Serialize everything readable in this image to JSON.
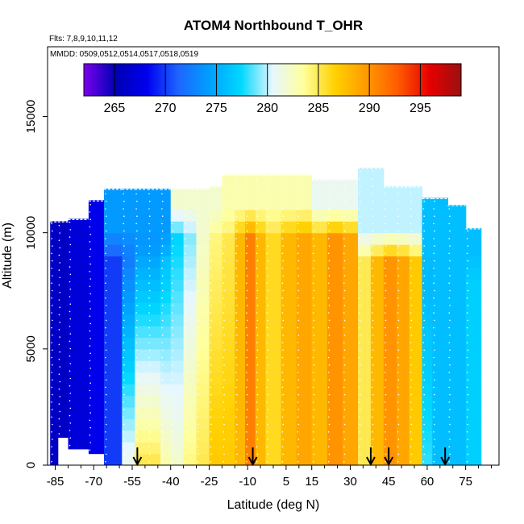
{
  "chart_data": {
    "type": "heatmap",
    "title": "ATOM4 Northbound T_OHR",
    "subtitle_flights": "Flts: 7,8,9,10,11,12",
    "subtitle_dates": "MMDD: 0509,0512,0514,0517,0518,0519",
    "xlabel": "Latitude (deg N)",
    "ylabel": "Altitude (m)",
    "xlim": [
      -88,
      88
    ],
    "ylim": [
      0,
      18000
    ],
    "x_ticks": [
      -85,
      -70,
      -55,
      -40,
      -25,
      -10,
      5,
      15,
      30,
      45,
      60,
      75
    ],
    "x_minor_ticks": [
      -80,
      -75,
      -65,
      -60,
      -50,
      -45,
      -35,
      -30,
      -20,
      -15,
      -5,
      0,
      10,
      20,
      25,
      35,
      40,
      50,
      55,
      65,
      70,
      80,
      85
    ],
    "y_ticks": [
      0,
      5000,
      10000,
      15000
    ],
    "colorbar": {
      "min": 262,
      "max": 299,
      "ticks": [
        265,
        270,
        275,
        280,
        285,
        290,
        295
      ],
      "palette": [
        "#7a00ee",
        "#0000b4",
        "#0000ee",
        "#1e64ff",
        "#00a0ff",
        "#00d8ff",
        "#e6f7ff",
        "#ffff9a",
        "#ffd000",
        "#ff9900",
        "#ff5a00",
        "#e60000",
        "#9a1010"
      ]
    },
    "arrow_latitudes": [
      -53,
      -8,
      38,
      45,
      67
    ],
    "profile_columns": [
      {
        "lat0": -87,
        "lat1": -84,
        "top": 10500,
        "bottom": 0,
        "t_surface": 266,
        "lapse": 0.0
      },
      {
        "lat0": -84,
        "lat1": -80,
        "top": 10500,
        "bottom": 1200,
        "t_surface": 266,
        "lapse": 0.0
      },
      {
        "lat0": -80,
        "lat1": -72,
        "top": 10600,
        "bottom": 700,
        "t_surface": 267,
        "lapse": 0.0
      },
      {
        "lat0": -72,
        "lat1": -66,
        "top": 11400,
        "bottom": 500,
        "t_surface": 268,
        "lapse": 0.0
      },
      {
        "lat0": -66,
        "lat1": -59,
        "top": 11900,
        "bottom": 0,
        "t_surface": 270,
        "lapse": 0.0
      },
      {
        "lat0": -59,
        "lat1": -54,
        "top": 11900,
        "bottom": 0,
        "t_surface": 281,
        "lapse": 1.0
      },
      {
        "lat0": -54,
        "lat1": -49,
        "top": 11900,
        "bottom": 0,
        "t_surface": 285,
        "lapse": 1.2
      },
      {
        "lat0": -49,
        "lat1": -44,
        "top": 11900,
        "bottom": 0,
        "t_surface": 285,
        "lapse": 1.2
      },
      {
        "lat0": -44,
        "lat1": -40,
        "top": 11900,
        "bottom": 0,
        "t_surface": 283,
        "lapse": 0.8
      },
      {
        "lat0": -40,
        "lat1": -35,
        "top": 11900,
        "bottom": 0,
        "t_surface": 282,
        "lapse": 0.5
      },
      {
        "lat0": -35,
        "lat1": -30,
        "top": 11900,
        "bottom": 0,
        "t_surface": 284,
        "lapse": 0.5
      },
      {
        "lat0": -30,
        "lat1": -25,
        "top": 11900,
        "bottom": 0,
        "t_surface": 285,
        "lapse": 0.3
      },
      {
        "lat0": -25,
        "lat1": -20,
        "top": 12000,
        "bottom": 0,
        "t_surface": 287,
        "lapse": 0.3
      },
      {
        "lat0": -20,
        "lat1": -15,
        "top": 12500,
        "bottom": 0,
        "t_surface": 287,
        "lapse": 0.2
      },
      {
        "lat0": -15,
        "lat1": -11,
        "top": 12500,
        "bottom": 0,
        "t_surface": 288,
        "lapse": 0.0
      },
      {
        "lat0": -11,
        "lat1": -7,
        "top": 12500,
        "bottom": 0,
        "t_surface": 291,
        "lapse": 0.0
      },
      {
        "lat0": -7,
        "lat1": -3,
        "top": 12500,
        "bottom": 0,
        "t_surface": 288,
        "lapse": 0.0
      },
      {
        "lat0": -3,
        "lat1": 3,
        "top": 12500,
        "bottom": 0,
        "t_surface": 286,
        "lapse": 0.0
      },
      {
        "lat0": 3,
        "lat1": 9,
        "top": 12500,
        "bottom": 0,
        "t_surface": 288,
        "lapse": 0.0
      },
      {
        "lat0": 9,
        "lat1": 15,
        "top": 12500,
        "bottom": 0,
        "t_surface": 289,
        "lapse": 0.0
      },
      {
        "lat0": 15,
        "lat1": 21,
        "top": 12300,
        "bottom": 0,
        "t_surface": 288,
        "lapse": 0.0
      },
      {
        "lat0": 21,
        "lat1": 27,
        "top": 12300,
        "bottom": 0,
        "t_surface": 290,
        "lapse": 0.0
      },
      {
        "lat0": 27,
        "lat1": 33,
        "top": 12300,
        "bottom": 0,
        "t_surface": 289,
        "lapse": 0.0
      },
      {
        "lat0": 33,
        "lat1": 38,
        "top": 12800,
        "bottom": 0,
        "t_surface": 285,
        "lapse": 0.0
      },
      {
        "lat0": 38,
        "lat1": 43,
        "top": 12800,
        "bottom": 0,
        "t_surface": 288,
        "lapse": 0.0
      },
      {
        "lat0": 43,
        "lat1": 48,
        "top": 12000,
        "bottom": 0,
        "t_surface": 290,
        "lapse": 0.0
      },
      {
        "lat0": 48,
        "lat1": 53,
        "top": 12000,
        "bottom": 0,
        "t_surface": 289,
        "lapse": 0.0
      },
      {
        "lat0": 53,
        "lat1": 58,
        "top": 12000,
        "bottom": 0,
        "t_surface": 287,
        "lapse": 0.0
      },
      {
        "lat0": 58,
        "lat1": 62,
        "top": 11500,
        "bottom": 0,
        "t_surface": 278,
        "lapse": 0.3
      },
      {
        "lat0": 62,
        "lat1": 68,
        "top": 11500,
        "bottom": 0,
        "t_surface": 276,
        "lapse": 0.0
      },
      {
        "lat0": 68,
        "lat1": 75,
        "top": 11200,
        "bottom": 0,
        "t_surface": 276,
        "lapse": 0.0
      },
      {
        "lat0": 75,
        "lat1": 81,
        "top": 10200,
        "bottom": 0,
        "t_surface": 277,
        "lapse": 0.0
      }
    ],
    "upper_air": [
      {
        "lat0": -66,
        "lat1": -40,
        "alt0": 9000,
        "alt1": 12000,
        "t": 274
      },
      {
        "lat0": -40,
        "lat1": -20,
        "alt0": 10000,
        "alt1": 12500,
        "t": 282
      },
      {
        "lat0": -20,
        "lat1": 15,
        "alt0": 10000,
        "alt1": 12500,
        "t": 283
      },
      {
        "lat0": 15,
        "lat1": 35,
        "alt0": 10000,
        "alt1": 12300,
        "t": 281
      },
      {
        "lat0": 35,
        "lat1": 60,
        "alt0": 9000,
        "alt1": 12800,
        "t": 280
      },
      {
        "lat0": 60,
        "lat1": 81,
        "alt0": 8000,
        "alt1": 11500,
        "t": 276
      }
    ]
  }
}
